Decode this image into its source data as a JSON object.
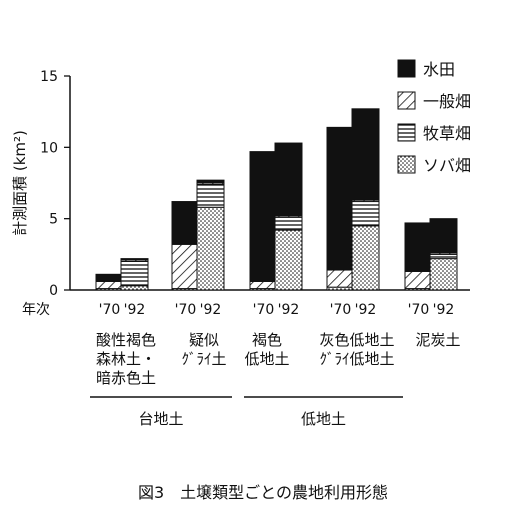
{
  "chart_data": {
    "type": "bar",
    "stacked": true,
    "ylabel": "計測面積 (km²)",
    "ylim": [
      0,
      15
    ],
    "yticks": [
      "0",
      "5",
      "10",
      "15"
    ],
    "xprefix": "年次",
    "year_labels": [
      "'70",
      "'92"
    ],
    "groups": [
      {
        "label_lines": [
          "酸性褐色",
          "森林土・",
          "暗赤色土"
        ]
      },
      {
        "label_lines": [
          "疑似",
          "ｸﾞﾗｲ土"
        ]
      },
      {
        "label_lines": [
          "褐色",
          "低地土"
        ]
      },
      {
        "label_lines": [
          "灰色低地土",
          "ｸﾞﾗｲ低地土"
        ]
      },
      {
        "label_lines": [
          "泥炭土"
        ]
      }
    ],
    "categories": [
      "'70",
      "'92",
      "'70",
      "'92",
      "'70",
      "'92",
      "'70",
      "'92",
      "'70",
      "'92"
    ],
    "series": [
      {
        "name": "ソバ畑",
        "pattern": "dots",
        "values": [
          0.1,
          0.3,
          0.1,
          5.8,
          0.1,
          4.2,
          0.2,
          4.5,
          0.1,
          2.2
        ]
      },
      {
        "name": "牧草畑",
        "pattern": "horizontal",
        "values": [
          0.0,
          1.7,
          0.0,
          1.6,
          0.0,
          0.9,
          0.0,
          1.7,
          0.0,
          0.3
        ]
      },
      {
        "name": "一般畑",
        "pattern": "diagonal",
        "values": [
          0.5,
          0.1,
          3.1,
          0.1,
          0.5,
          0.1,
          1.2,
          0.1,
          1.2,
          0.1
        ]
      },
      {
        "name": "水田",
        "pattern": "solid",
        "values": [
          0.5,
          0.1,
          3.0,
          0.2,
          9.1,
          5.1,
          10.0,
          6.4,
          3.4,
          2.4
        ]
      }
    ],
    "legend_order": [
      "水田",
      "一般畑",
      "牧草畑",
      "ソバ畑"
    ],
    "legend_position": "top-right",
    "brackets": [
      {
        "label": "台地土",
        "groups": [
          0,
          1
        ]
      },
      {
        "label": "低地土",
        "groups": [
          2,
          3
        ]
      }
    ]
  },
  "caption": "図3　土壌類型ごとの農地利用形態"
}
